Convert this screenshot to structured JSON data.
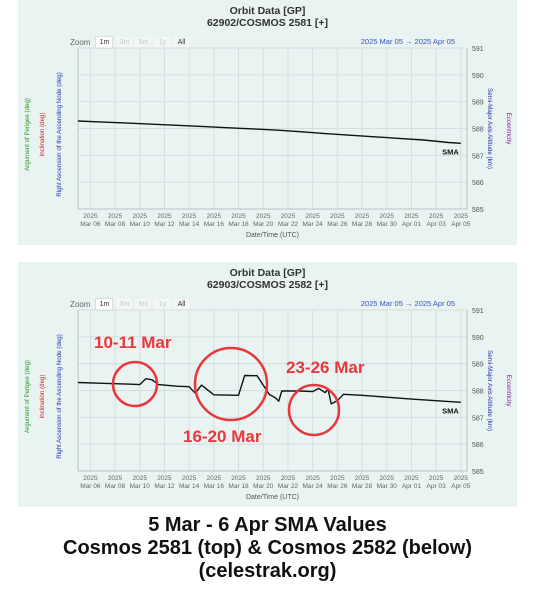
{
  "charts": [
    {
      "title": "Orbit Data [GP]",
      "subtitle": "62902/COSMOS 2581 [+]",
      "zoom_label": "Zoom",
      "zoom_buttons": [
        "1m",
        "3m",
        "6m",
        "1y",
        "All"
      ],
      "range_text": "2025 Mar 05  →  2025 Apr 05",
      "left_axis_labels": [
        "Argument of Perigee (deg)",
        "Inclination (deg)",
        "Right Ascension of the Ascending Node (deg)"
      ],
      "right_axis_labels": [
        "Semi-Major Axis Altitude (km)",
        "Eccentricity"
      ],
      "xlabel": "Date/Time (UTC)",
      "series_label": "SMA"
    },
    {
      "title": "Orbit Data [GP]",
      "subtitle": "62903/COSMOS 2582 [+]",
      "zoom_label": "Zoom",
      "zoom_buttons": [
        "1m",
        "3m",
        "6m",
        "1y",
        "All"
      ],
      "range_text": "2025 Mar 05  →  2025 Apr 05",
      "left_axis_labels": [
        "Argument of Perigee (deg)",
        "Inclination (deg)",
        "Right Ascension of the Ascending Node (deg)"
      ],
      "right_axis_labels": [
        "Semi-Major Axis Altitude (km)",
        "Eccentricity"
      ],
      "xlabel": "Date/Time (UTC)",
      "series_label": "SMA",
      "annotations": [
        "10-11 Mar",
        "16-20  Mar",
        "23-26 Mar"
      ]
    }
  ],
  "colors": {
    "panel_bg": "#e9f3f2",
    "line": "#111111",
    "annotation": "#e8383d",
    "grid": "#d4dede",
    "axis_blue": "#2233aa",
    "axis_red": "#cc2222",
    "axis_green": "#229922",
    "axis_purple": "#882299",
    "range_blue": "#3355bb"
  },
  "caption": {
    "line1": "5 Mar - 6 Apr SMA Values",
    "line2": "Cosmos 2581 (top) & Cosmos 2582 (below)",
    "line3": "(celestrak.org)"
  },
  "chart_data": [
    {
      "type": "line",
      "title": "Orbit Data [GP]",
      "subtitle": "62902/COSMOS 2581 [+]",
      "xlabel": "Date/Time (UTC)",
      "ylabel": "Semi-Major Axis Altitude (km)",
      "x_ticks": [
        "2025 Mar 06",
        "2025 Mar 08",
        "2025 Mar 10",
        "2025 Mar 12",
        "2025 Mar 14",
        "2025 Mar 16",
        "2025 Mar 18",
        "2025 Mar 20",
        "2025 Mar 22",
        "2025 Mar 24",
        "2025 Mar 26",
        "2025 Mar 28",
        "2025 Mar 30",
        "2025 Apr 01",
        "2025 Apr 03",
        "2025 Apr 05"
      ],
      "y_ticks": [
        585,
        586,
        587,
        588,
        589,
        590,
        591
      ],
      "ylim": [
        585,
        591
      ],
      "grid": true,
      "series": [
        {
          "name": "SMA",
          "points": [
            [
              "2025-03-05",
              588.28
            ],
            [
              "2025-03-07",
              588.24
            ],
            [
              "2025-03-09",
              588.2
            ],
            [
              "2025-03-11",
              588.16
            ],
            [
              "2025-03-13",
              588.12
            ],
            [
              "2025-03-15",
              588.08
            ],
            [
              "2025-03-17",
              588.03
            ],
            [
              "2025-03-19",
              587.99
            ],
            [
              "2025-03-21",
              587.94
            ],
            [
              "2025-03-23",
              587.88
            ],
            [
              "2025-03-25",
              587.81
            ],
            [
              "2025-03-27",
              587.75
            ],
            [
              "2025-03-29",
              587.69
            ],
            [
              "2025-03-31",
              587.63
            ],
            [
              "2025-04-02",
              587.57
            ],
            [
              "2025-04-04",
              587.48
            ],
            [
              "2025-04-05",
              587.45
            ]
          ]
        }
      ]
    },
    {
      "type": "line",
      "title": "Orbit Data [GP]",
      "subtitle": "62903/COSMOS 2582 [+]",
      "xlabel": "Date/Time (UTC)",
      "ylabel": "Semi-Major Axis Altitude (km)",
      "x_ticks": [
        "2025 Mar 06",
        "2025 Mar 08",
        "2025 Mar 10",
        "2025 Mar 12",
        "2025 Mar 14",
        "2025 Mar 16",
        "2025 Mar 18",
        "2025 Mar 20",
        "2025 Mar 22",
        "2025 Mar 24",
        "2025 Mar 26",
        "2025 Mar 28",
        "2025 Mar 30",
        "2025 Apr 01",
        "2025 Apr 03",
        "2025 Apr 05"
      ],
      "y_ticks": [
        585,
        586,
        587,
        588,
        589,
        590,
        591
      ],
      "ylim": [
        585,
        591
      ],
      "grid": true,
      "series": [
        {
          "name": "SMA",
          "points": [
            [
              "2025-03-05 00:00",
              588.3
            ],
            [
              "2025-03-07 00:00",
              588.27
            ],
            [
              "2025-03-09 00:00",
              588.24
            ],
            [
              "2025-03-10 00:00",
              588.22
            ],
            [
              "2025-03-10 12:00",
              588.44
            ],
            [
              "2025-03-11 00:00",
              588.4
            ],
            [
              "2025-03-11 12:00",
              588.22
            ],
            [
              "2025-03-13 00:00",
              588.16
            ],
            [
              "2025-03-14 00:00",
              588.14
            ],
            [
              "2025-03-14 12:00",
              587.9
            ],
            [
              "2025-03-15 00:00",
              588.2
            ],
            [
              "2025-03-16 00:00",
              587.84
            ],
            [
              "2025-03-17 00:00",
              587.83
            ],
            [
              "2025-03-18 00:00",
              587.82
            ],
            [
              "2025-03-18 12:00",
              588.56
            ],
            [
              "2025-03-19 12:00",
              588.55
            ],
            [
              "2025-03-20 00:00",
              588.2
            ],
            [
              "2025-03-20 12:00",
              587.85
            ],
            [
              "2025-03-21 00:00",
              587.72
            ],
            [
              "2025-03-21 06:00",
              587.6
            ],
            [
              "2025-03-21 12:00",
              587.98
            ],
            [
              "2025-03-23 00:00",
              587.98
            ],
            [
              "2025-03-24 00:00",
              587.96
            ],
            [
              "2025-03-24 12:00",
              588.08
            ],
            [
              "2025-03-25 00:00",
              587.92
            ],
            [
              "2025-03-25 06:00",
              588.04
            ],
            [
              "2025-03-25 12:00",
              587.5
            ],
            [
              "2025-03-26 00:00",
              587.62
            ],
            [
              "2025-03-26 12:00",
              587.86
            ],
            [
              "2025-03-28 00:00",
              587.82
            ],
            [
              "2025-03-30 00:00",
              587.75
            ],
            [
              "2025-04-01 00:00",
              587.68
            ],
            [
              "2025-04-03 00:00",
              587.62
            ],
            [
              "2025-04-05 00:00",
              587.56
            ]
          ]
        }
      ],
      "annotations": [
        "10-11 Mar",
        "16-20  Mar",
        "23-26 Mar"
      ]
    }
  ]
}
